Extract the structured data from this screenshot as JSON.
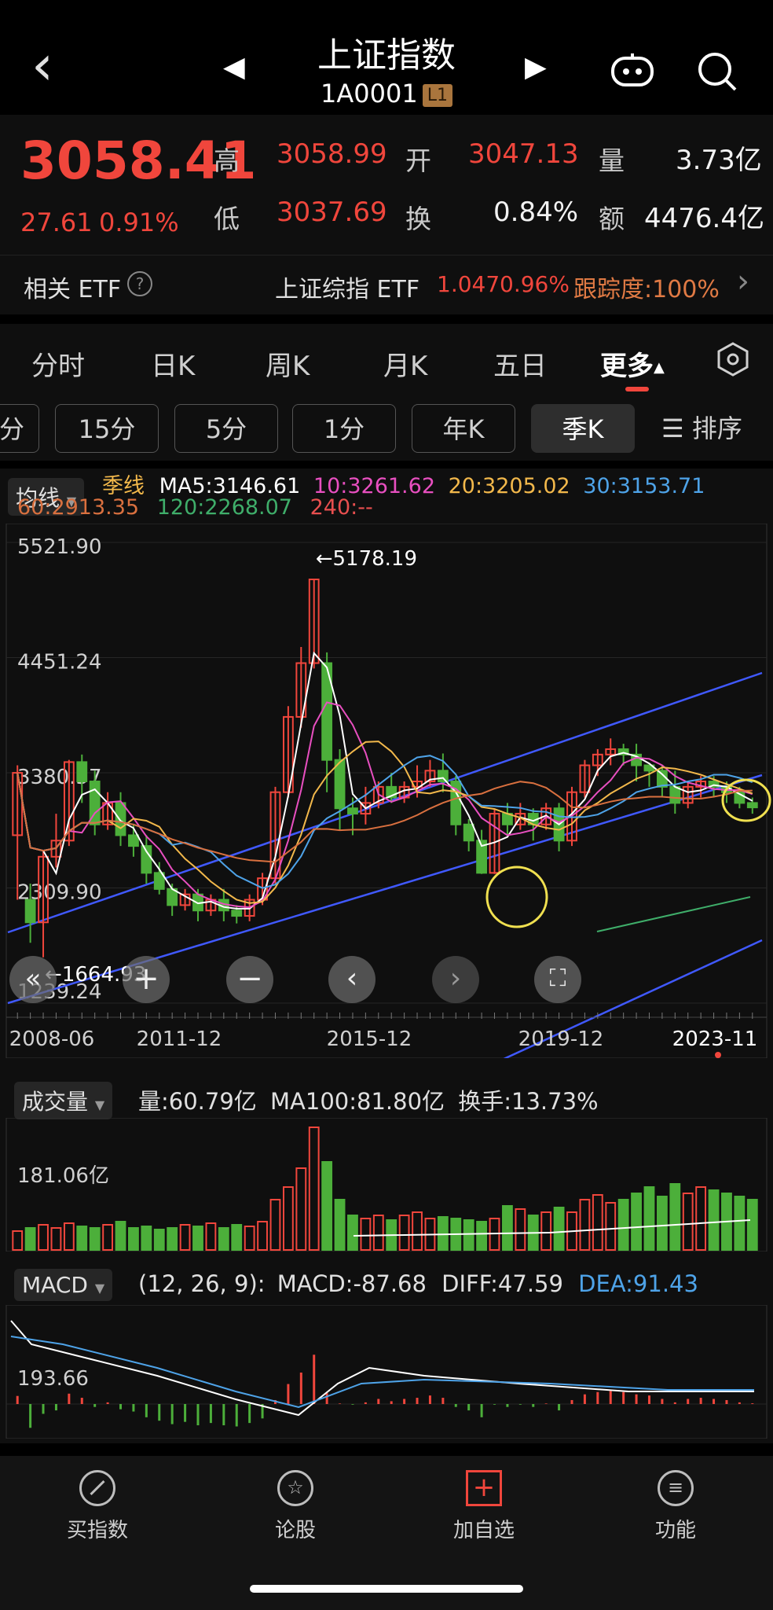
{
  "header": {
    "back": "‹",
    "prev": "◀",
    "next": "▶",
    "title": "上证指数",
    "code": "1A0001",
    "badge": "L1"
  },
  "quote": {
    "price": "3058.41",
    "change": "27.61",
    "change_pct": "0.91%",
    "high_label": "高",
    "high": "3058.99",
    "open_label": "开",
    "open": "3047.13",
    "vol_label": "量",
    "vol": "3.73亿",
    "low_label": "低",
    "low": "3037.69",
    "turn_label": "换",
    "turn": "0.84%",
    "amt_label": "额",
    "amt": "4476.4亿"
  },
  "etf": {
    "label": "相关 ETF",
    "help": "?",
    "name": "上证综指 ETF",
    "price": "1.047",
    "pct": "0.96%",
    "track": "跟踪度:100%",
    "arrow": "›"
  },
  "tabs": [
    "分时",
    "日K",
    "周K",
    "月K",
    "五日",
    "更多"
  ],
  "tab_more_caret": "▲",
  "periods": [
    "分",
    "15分",
    "5分",
    "1分",
    "年K",
    "季K"
  ],
  "sort": "排序",
  "ma": {
    "selector": "均线",
    "caret": "▼",
    "period": "季线",
    "ma5": "MA5:3146.61",
    "ma10": "10:3261.62",
    "ma20": "20:3205.02",
    "ma30": "30:3153.71",
    "ma60": "60:2913.35",
    "ma120": "120:2268.07",
    "ma240": "240:--"
  },
  "colors": {
    "ma5": "#ffffff",
    "ma10": "#e84fc0",
    "ma20": "#f2b84b",
    "ma30": "#4ea3e8",
    "ma60": "#d9703f",
    "ma120": "#3fae6a",
    "up": "#f0463c",
    "down": "#4caf3a",
    "channel": "#4059ff",
    "circle": "#f0e050"
  },
  "chart_data": [
    {
      "type": "candlestick",
      "title": "季K",
      "y_ticks": [
        "5521.90",
        "4451.24",
        "3380.57",
        "2309.90",
        "1239.24"
      ],
      "x_ticks": [
        "2008-06",
        "2011-12",
        "2015-12",
        "2019-12",
        "2023-11"
      ],
      "high_marker": "←5178.19",
      "low_marker": "←1664.93",
      "ylim": [
        1239.24,
        5521.9
      ],
      "candles": [
        [
          2800,
          3380,
          2200,
          3450
        ],
        [
          2200,
          1990,
          1800,
          2350
        ],
        [
          1990,
          2600,
          1664.93,
          2650
        ],
        [
          2600,
          2750,
          2500,
          3000
        ],
        [
          2750,
          3480,
          2700,
          3500
        ],
        [
          3480,
          3300,
          3100,
          3550
        ],
        [
          3300,
          2900,
          2800,
          3400
        ],
        [
          2900,
          3100,
          2850,
          3200
        ],
        [
          3100,
          2800,
          2700,
          3200
        ],
        [
          2800,
          2700,
          2600,
          2900
        ],
        [
          2700,
          2450,
          2350,
          2800
        ],
        [
          2450,
          2300,
          2250,
          2550
        ],
        [
          2300,
          2150,
          2050,
          2350
        ],
        [
          2150,
          2250,
          2100,
          2300
        ],
        [
          2250,
          2100,
          2000,
          2300
        ],
        [
          2100,
          2200,
          2050,
          2250
        ],
        [
          2200,
          2100,
          2000,
          2300
        ],
        [
          2100,
          2050,
          1980,
          2150
        ],
        [
          2050,
          2200,
          2000,
          2250
        ],
        [
          2200,
          2400,
          2150,
          2450
        ],
        [
          2400,
          3200,
          2350,
          3250
        ],
        [
          3200,
          3900,
          3150,
          4000
        ],
        [
          3900,
          4400,
          3800,
          4550
        ],
        [
          4400,
          5178.19,
          4350,
          5178.19
        ],
        [
          4400,
          3500,
          3200,
          4500
        ],
        [
          3500,
          3050,
          2850,
          3600
        ],
        [
          3050,
          3000,
          2800,
          3150
        ],
        [
          3000,
          3100,
          2900,
          3250
        ],
        [
          3100,
          3250,
          3050,
          3300
        ],
        [
          3250,
          3150,
          3100,
          3380
        ],
        [
          3150,
          3250,
          3100,
          3300
        ],
        [
          3250,
          3300,
          3150,
          3450
        ],
        [
          3300,
          3400,
          3250,
          3500
        ],
        [
          3400,
          3300,
          3200,
          3560
        ],
        [
          3300,
          2900,
          2800,
          3350
        ],
        [
          2900,
          2750,
          2650,
          2950
        ],
        [
          2750,
          2450,
          2440,
          2850
        ],
        [
          2450,
          3000,
          2440,
          3050
        ],
        [
          3000,
          2900,
          2800,
          3100
        ],
        [
          2900,
          3000,
          2850,
          3100
        ],
        [
          3000,
          2900,
          2750,
          3050
        ],
        [
          2900,
          3050,
          2850,
          3100
        ],
        [
          3050,
          2750,
          2650,
          3100
        ],
        [
          2750,
          3200,
          2700,
          3250
        ],
        [
          3200,
          3450,
          3150,
          3500
        ],
        [
          3450,
          3550,
          3350,
          3600
        ],
        [
          3550,
          3600,
          3450,
          3700
        ],
        [
          3600,
          3550,
          3450,
          3650
        ],
        [
          3550,
          3450,
          3300,
          3650
        ],
        [
          3450,
          3400,
          3250,
          3450
        ],
        [
          3400,
          3250,
          3150,
          3450
        ],
        [
          3250,
          3100,
          3000,
          3400
        ],
        [
          3100,
          3250,
          3050,
          3300
        ],
        [
          3250,
          3300,
          3150,
          3350
        ],
        [
          3300,
          3250,
          3150,
          3350
        ],
        [
          3250,
          3200,
          3100,
          3300
        ],
        [
          3200,
          3100,
          3050,
          3250
        ],
        [
          3100,
          3058.41,
          3000,
          3150
        ]
      ]
    },
    {
      "type": "bar",
      "title": "成交量",
      "value_label": "量:60.79亿",
      "ma100": "MA100:81.80亿",
      "turnover": "换手:13.73%",
      "y_tick": "181.06亿",
      "volumes": [
        60,
        70,
        80,
        70,
        85,
        75,
        70,
        80,
        90,
        70,
        75,
        65,
        70,
        80,
        75,
        85,
        70,
        80,
        75,
        90,
        160,
        200,
        260,
        390,
        280,
        160,
        110,
        100,
        110,
        95,
        110,
        120,
        100,
        105,
        100,
        95,
        90,
        100,
        140,
        130,
        110,
        120,
        135,
        120,
        160,
        175,
        150,
        160,
        180,
        200,
        170,
        210,
        180,
        200,
        190,
        180,
        170,
        160
      ]
    },
    {
      "type": "bar",
      "title": "MACD",
      "params": "(12, 26, 9):",
      "macd": "MACD:-87.68",
      "diff": "DIFF:47.59",
      "dea": "DEA:91.43",
      "y_tick": "193.66"
    }
  ],
  "nav": [
    {
      "icon": "buy-index-icon",
      "label": "买指数"
    },
    {
      "icon": "discuss-stock-icon",
      "label": "论股"
    },
    {
      "icon": "add-watchlist-icon",
      "label": "加自选"
    },
    {
      "icon": "function-icon",
      "label": "功能"
    }
  ]
}
